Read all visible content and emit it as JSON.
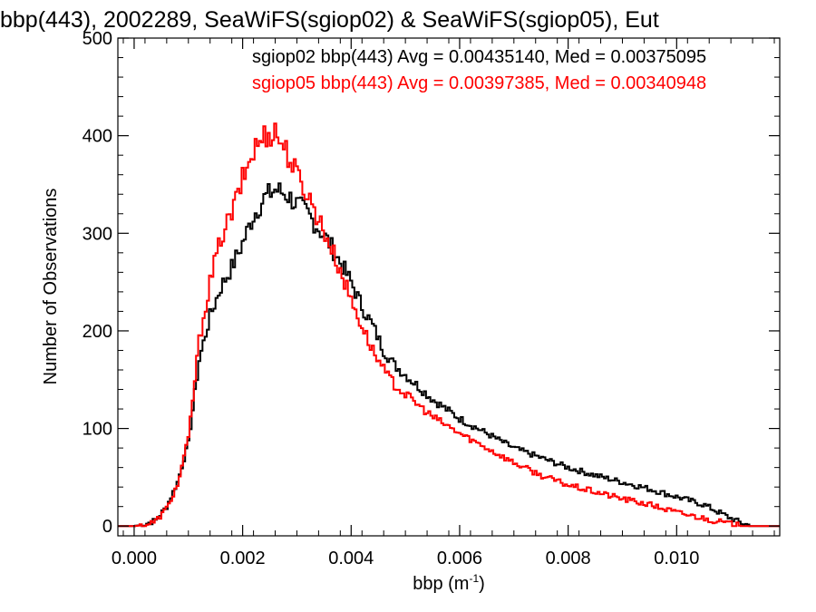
{
  "chart_data": {
    "type": "histogram",
    "title": "bbp(443), 2002289, SeaWiFS(sgiop02) & SeaWiFS(sgiop05), Eut",
    "xlabel": "bbp (m",
    "xlabel_sup": "-1",
    "xlabel_end": ")",
    "ylabel": "Number of Observations",
    "xlim": [
      -0.0003,
      0.0119
    ],
    "ylim": [
      -10,
      500
    ],
    "x_ticks": [
      0.0,
      0.002,
      0.004,
      0.006,
      0.008,
      0.01
    ],
    "x_tick_labels": [
      "0.000",
      "0.002",
      "0.004",
      "0.006",
      "0.008",
      "0.010"
    ],
    "y_ticks": [
      0,
      100,
      200,
      300,
      400,
      500
    ],
    "y_tick_labels": [
      "0",
      "100",
      "200",
      "300",
      "400",
      "500"
    ],
    "legend_position": "top-right",
    "grid": false,
    "bin_width": 4e-05,
    "series": [
      {
        "name": "sgiop02",
        "color": "#000000",
        "legend_text": "sgiop02 bbp(443) Avg = 0.00435140, Med = 0.00375095",
        "x": [
          -0.0003,
          0.0,
          0.0002,
          0.0004,
          0.0006,
          0.0008,
          0.001,
          0.0012,
          0.0014,
          0.0016,
          0.0018,
          0.002,
          0.0022,
          0.0024,
          0.0026,
          0.0028,
          0.003,
          0.0032,
          0.0034,
          0.0036,
          0.0038,
          0.004,
          0.0042,
          0.0044,
          0.0046,
          0.0048,
          0.005,
          0.0055,
          0.006,
          0.0065,
          0.007,
          0.0075,
          0.008,
          0.0085,
          0.009,
          0.0095,
          0.01,
          0.0105,
          0.011,
          0.0112,
          0.0114,
          0.0116,
          0.0119
        ],
        "y": [
          0,
          0,
          2,
          6,
          20,
          45,
          85,
          170,
          215,
          245,
          265,
          290,
          318,
          336,
          345,
          340,
          330,
          320,
          305,
          290,
          270,
          250,
          225,
          205,
          180,
          165,
          155,
          130,
          110,
          95,
          80,
          70,
          60,
          52,
          45,
          38,
          30,
          22,
          8,
          3,
          0,
          0,
          0
        ]
      },
      {
        "name": "sgiop05",
        "color": "#ff0000",
        "legend_text": "sgiop05 bbp(443) Avg = 0.00397385, Med = 0.00340948",
        "x": [
          -0.0003,
          0.0,
          0.0002,
          0.0004,
          0.0006,
          0.0008,
          0.001,
          0.0012,
          0.0014,
          0.0016,
          0.0018,
          0.002,
          0.0022,
          0.0024,
          0.0026,
          0.0028,
          0.003,
          0.0032,
          0.0034,
          0.0036,
          0.0038,
          0.004,
          0.0042,
          0.0044,
          0.0046,
          0.0048,
          0.005,
          0.0055,
          0.006,
          0.0065,
          0.007,
          0.0075,
          0.008,
          0.0085,
          0.009,
          0.0095,
          0.01,
          0.0105,
          0.011,
          0.0112,
          0.0114,
          0.0116,
          0.0119
        ],
        "y": [
          0,
          0,
          1,
          5,
          18,
          42,
          90,
          190,
          250,
          295,
          320,
          355,
          385,
          400,
          405,
          385,
          360,
          340,
          315,
          290,
          262,
          232,
          205,
          180,
          160,
          145,
          135,
          112,
          95,
          80,
          65,
          52,
          42,
          35,
          28,
          22,
          14,
          8,
          2,
          0,
          0,
          0,
          0
        ]
      }
    ]
  }
}
